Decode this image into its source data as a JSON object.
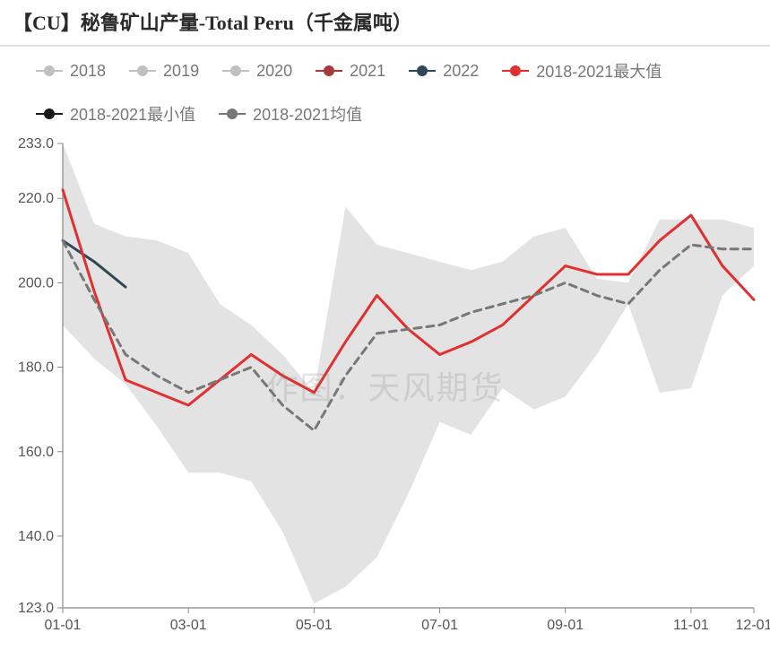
{
  "title": "【CU】秘鲁矿山产量-Total Peru（千金属吨）",
  "watermark": "作图：天风期货",
  "chart": {
    "type": "line",
    "background_color": "#ffffff",
    "grid_color": "#e0e0e0",
    "axis_color": "#888888",
    "axis_fontsize": 16,
    "title_fontsize": 22,
    "legend_fontsize": 18,
    "ylim": [
      123.0,
      233.0
    ],
    "yticks": [
      123.0,
      140.0,
      160.0,
      180.0,
      200.0,
      220.0,
      233.0
    ],
    "ytick_labels": [
      "123.0",
      "140.0",
      "160.0",
      "180.0",
      "200.0",
      "220.0",
      "233.0"
    ],
    "x_categories": [
      "01-01",
      "01-15",
      "02-01",
      "02-15",
      "03-01",
      "03-15",
      "04-01",
      "04-15",
      "05-01",
      "05-15",
      "06-01",
      "06-15",
      "07-01",
      "07-15",
      "08-01",
      "08-15",
      "09-01",
      "09-15",
      "10-01",
      "10-15",
      "11-01",
      "11-15",
      "12-01"
    ],
    "xtick_indices": [
      0,
      4,
      8,
      12,
      16,
      20,
      22
    ],
    "xtick_labels": [
      "01-01",
      "03-01",
      "05-01",
      "07-01",
      "09-01",
      "11-01",
      "12-01"
    ],
    "band": {
      "fill": "#d9d9d9",
      "opacity": 0.75,
      "upper": [
        233,
        214,
        211,
        210,
        207,
        195,
        190,
        183,
        174,
        218,
        209,
        207,
        205,
        203,
        205,
        211,
        213,
        201,
        200,
        215,
        215,
        215,
        213
      ],
      "lower": [
        190,
        182,
        176,
        166,
        155,
        155,
        153,
        141,
        124,
        128,
        135,
        150,
        167,
        164,
        175,
        170,
        173,
        183,
        195,
        174,
        175,
        197,
        204
      ]
    },
    "series": [
      {
        "name": "2018",
        "label": "2018",
        "color": "#c0c0c0",
        "marker_color": "#c0c0c0",
        "width": 2,
        "dash": "",
        "visible_in_chart": false,
        "data": []
      },
      {
        "name": "2019",
        "label": "2019",
        "color": "#c0c0c0",
        "marker_color": "#c0c0c0",
        "width": 2,
        "dash": "",
        "visible_in_chart": false,
        "data": []
      },
      {
        "name": "2020",
        "label": "2020",
        "color": "#c0c0c0",
        "marker_color": "#c0c0c0",
        "width": 2,
        "dash": "",
        "visible_in_chart": false,
        "data": []
      },
      {
        "name": "2021",
        "label": "2021",
        "color": "#a63a3a",
        "marker_color": "#a63a3a",
        "width": 3,
        "dash": "",
        "visible_in_chart": false,
        "data": []
      },
      {
        "name": "2022",
        "label": "2022",
        "color": "#2f4858",
        "marker_color": "#2f4858",
        "width": 3,
        "dash": "",
        "visible_in_chart": true,
        "data": [
          210,
          205,
          199
        ]
      },
      {
        "name": "max_2018_2021",
        "label": "2018-2021最大值",
        "color": "#e03030",
        "marker_color": "#e03030",
        "width": 3,
        "dash": "",
        "visible_in_chart": true,
        "data": [
          222,
          198,
          177,
          174,
          171,
          177,
          183,
          178,
          174,
          186,
          197,
          189,
          183,
          186,
          190,
          197,
          204,
          202,
          202,
          210,
          216,
          204,
          196
        ]
      },
      {
        "name": "min_2018_2021",
        "label": "2018-2021最小值",
        "color": "#1a1a1a",
        "marker_color": "#1a1a1a",
        "width": 2,
        "dash": "",
        "visible_in_chart": false,
        "data": []
      },
      {
        "name": "mean_2018_2021",
        "label": "2018-2021均值",
        "color": "#777777",
        "marker_color": "#777777",
        "width": 3,
        "dash": "8 6",
        "visible_in_chart": true,
        "data": [
          210,
          196,
          183,
          178,
          174,
          177,
          180,
          171,
          165,
          178,
          188,
          189,
          190,
          193,
          195,
          197,
          200,
          197,
          195,
          203,
          209,
          208,
          208
        ]
      }
    ]
  },
  "legend_items": [
    {
      "ref": "2018"
    },
    {
      "ref": "2019"
    },
    {
      "ref": "2020"
    },
    {
      "ref": "2021"
    },
    {
      "ref": "2022"
    },
    {
      "ref": "max_2018_2021"
    },
    {
      "ref": "min_2018_2021"
    },
    {
      "ref": "mean_2018_2021"
    }
  ]
}
